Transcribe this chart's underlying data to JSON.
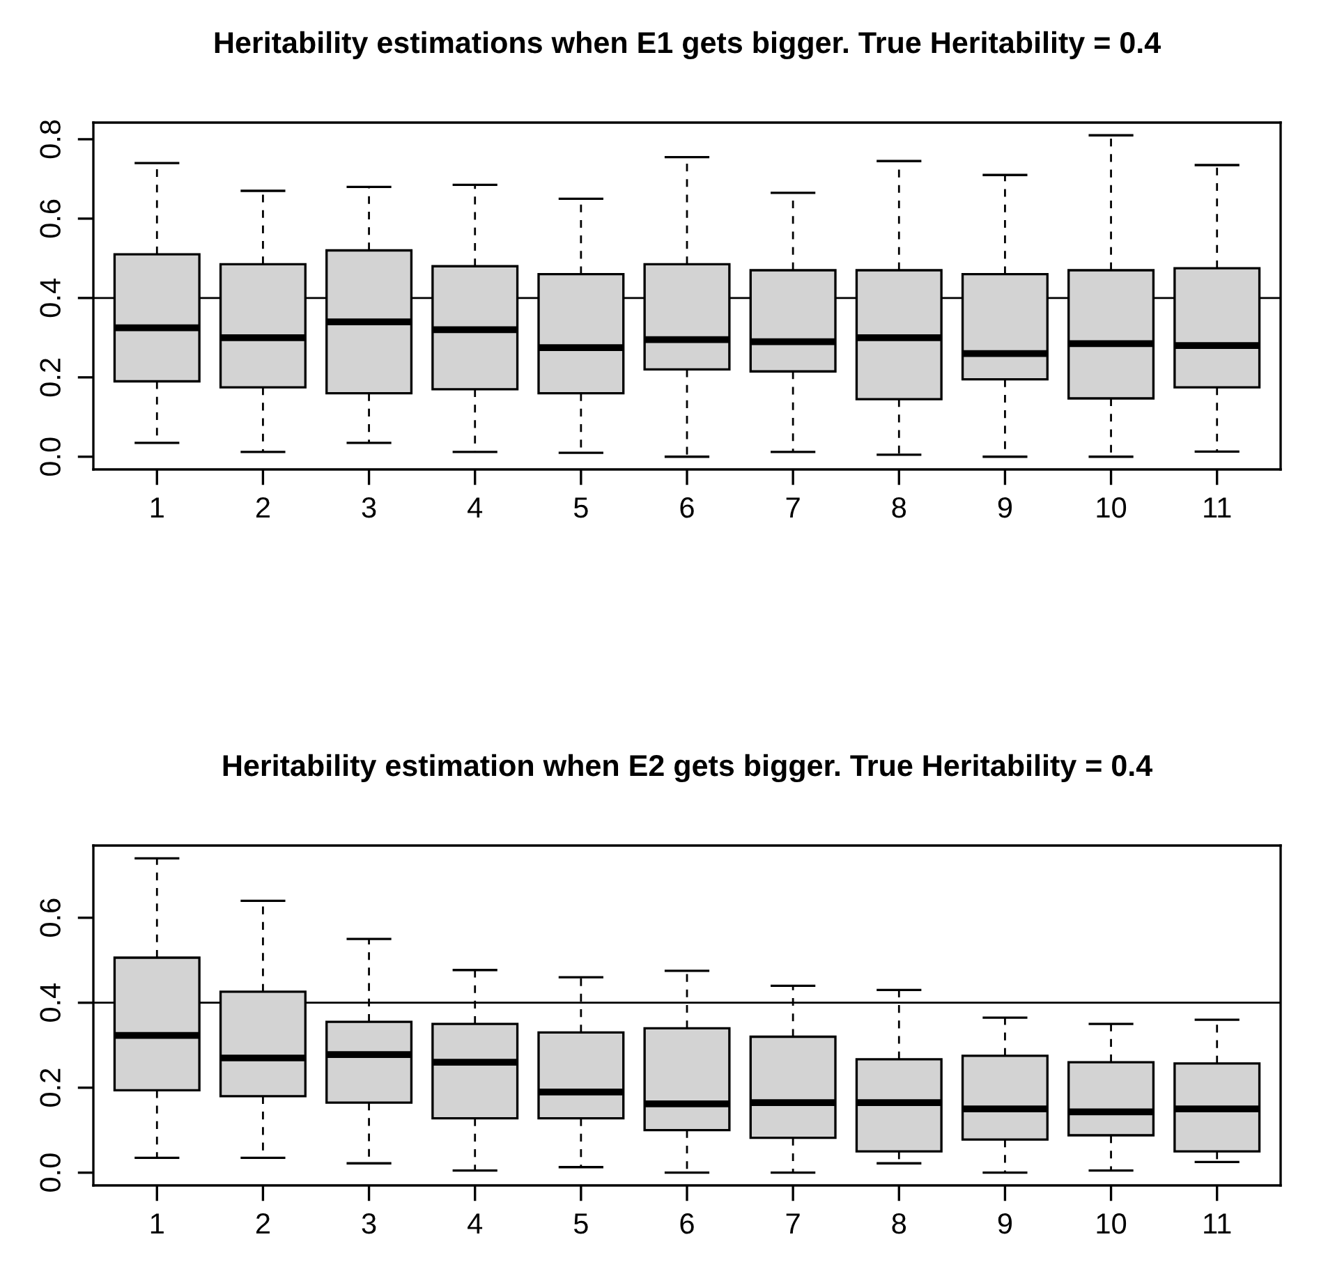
{
  "chart_data": [
    {
      "type": "box",
      "title": "Heritability estimations when E1 gets bigger. True Heritability = 0.4",
      "categories": [
        "1",
        "2",
        "3",
        "4",
        "5",
        "6",
        "7",
        "8",
        "9",
        "10",
        "11"
      ],
      "boxes": [
        {
          "low": 0.035,
          "q1": 0.19,
          "median": 0.325,
          "q3": 0.51,
          "high": 0.74
        },
        {
          "low": 0.012,
          "q1": 0.175,
          "median": 0.3,
          "q3": 0.485,
          "high": 0.67
        },
        {
          "low": 0.035,
          "q1": 0.16,
          "median": 0.34,
          "q3": 0.52,
          "high": 0.68
        },
        {
          "low": 0.012,
          "q1": 0.17,
          "median": 0.32,
          "q3": 0.48,
          "high": 0.685
        },
        {
          "low": 0.01,
          "q1": 0.16,
          "median": 0.275,
          "q3": 0.46,
          "high": 0.65
        },
        {
          "low": 0.0,
          "q1": 0.22,
          "median": 0.295,
          "q3": 0.485,
          "high": 0.755
        },
        {
          "low": 0.012,
          "q1": 0.215,
          "median": 0.29,
          "q3": 0.47,
          "high": 0.665
        },
        {
          "low": 0.005,
          "q1": 0.145,
          "median": 0.3,
          "q3": 0.47,
          "high": 0.745
        },
        {
          "low": 0.0,
          "q1": 0.195,
          "median": 0.26,
          "q3": 0.46,
          "high": 0.71
        },
        {
          "low": 0.0,
          "q1": 0.147,
          "median": 0.285,
          "q3": 0.47,
          "high": 0.81
        },
        {
          "low": 0.013,
          "q1": 0.175,
          "median": 0.28,
          "q3": 0.475,
          "high": 0.735
        }
      ],
      "color": "#d3d3d3",
      "ylim": [
        -0.032,
        0.842
      ],
      "yticks": [
        {
          "value": 0,
          "label": "0.0"
        },
        0.2,
        0.4,
        0.6,
        0.8
      ],
      "grid": false,
      "ref_lines": [
        {
          "axis": "y",
          "value": 0.4
        }
      ]
    },
    {
      "type": "box",
      "title": "Heritability estimation when E2 gets bigger. True Heritability = 0.4",
      "categories": [
        "1",
        "2",
        "3",
        "4",
        "5",
        "6",
        "7",
        "8",
        "9",
        "10",
        "11"
      ],
      "boxes": [
        {
          "low": 0.035,
          "q1": 0.194,
          "median": 0.323,
          "q3": 0.506,
          "high": 0.74
        },
        {
          "low": 0.035,
          "q1": 0.18,
          "median": 0.27,
          "q3": 0.426,
          "high": 0.64
        },
        {
          "low": 0.022,
          "q1": 0.165,
          "median": 0.278,
          "q3": 0.355,
          "high": 0.55
        },
        {
          "low": 0.005,
          "q1": 0.128,
          "median": 0.26,
          "q3": 0.35,
          "high": 0.477
        },
        {
          "low": 0.013,
          "q1": 0.128,
          "median": 0.19,
          "q3": 0.33,
          "high": 0.46
        },
        {
          "low": 0.0,
          "q1": 0.1,
          "median": 0.162,
          "q3": 0.34,
          "high": 0.475
        },
        {
          "low": 0.0,
          "q1": 0.082,
          "median": 0.165,
          "q3": 0.32,
          "high": 0.44
        },
        {
          "low": 0.022,
          "q1": 0.05,
          "median": 0.165,
          "q3": 0.267,
          "high": 0.43
        },
        {
          "low": 0.0,
          "q1": 0.078,
          "median": 0.15,
          "q3": 0.275,
          "high": 0.365
        },
        {
          "low": 0.005,
          "q1": 0.088,
          "median": 0.143,
          "q3": 0.26,
          "high": 0.35
        },
        {
          "low": 0.025,
          "q1": 0.05,
          "median": 0.15,
          "q3": 0.257,
          "high": 0.36
        }
      ],
      "color": "#d3d3d3",
      "ylim": [
        -0.03,
        0.77
      ],
      "yticks": [
        {
          "value": 0,
          "label": "0.0"
        },
        0.2,
        0.4,
        0.6
      ],
      "grid": false,
      "ref_lines": [
        {
          "axis": "y",
          "value": 0.4
        }
      ]
    }
  ]
}
